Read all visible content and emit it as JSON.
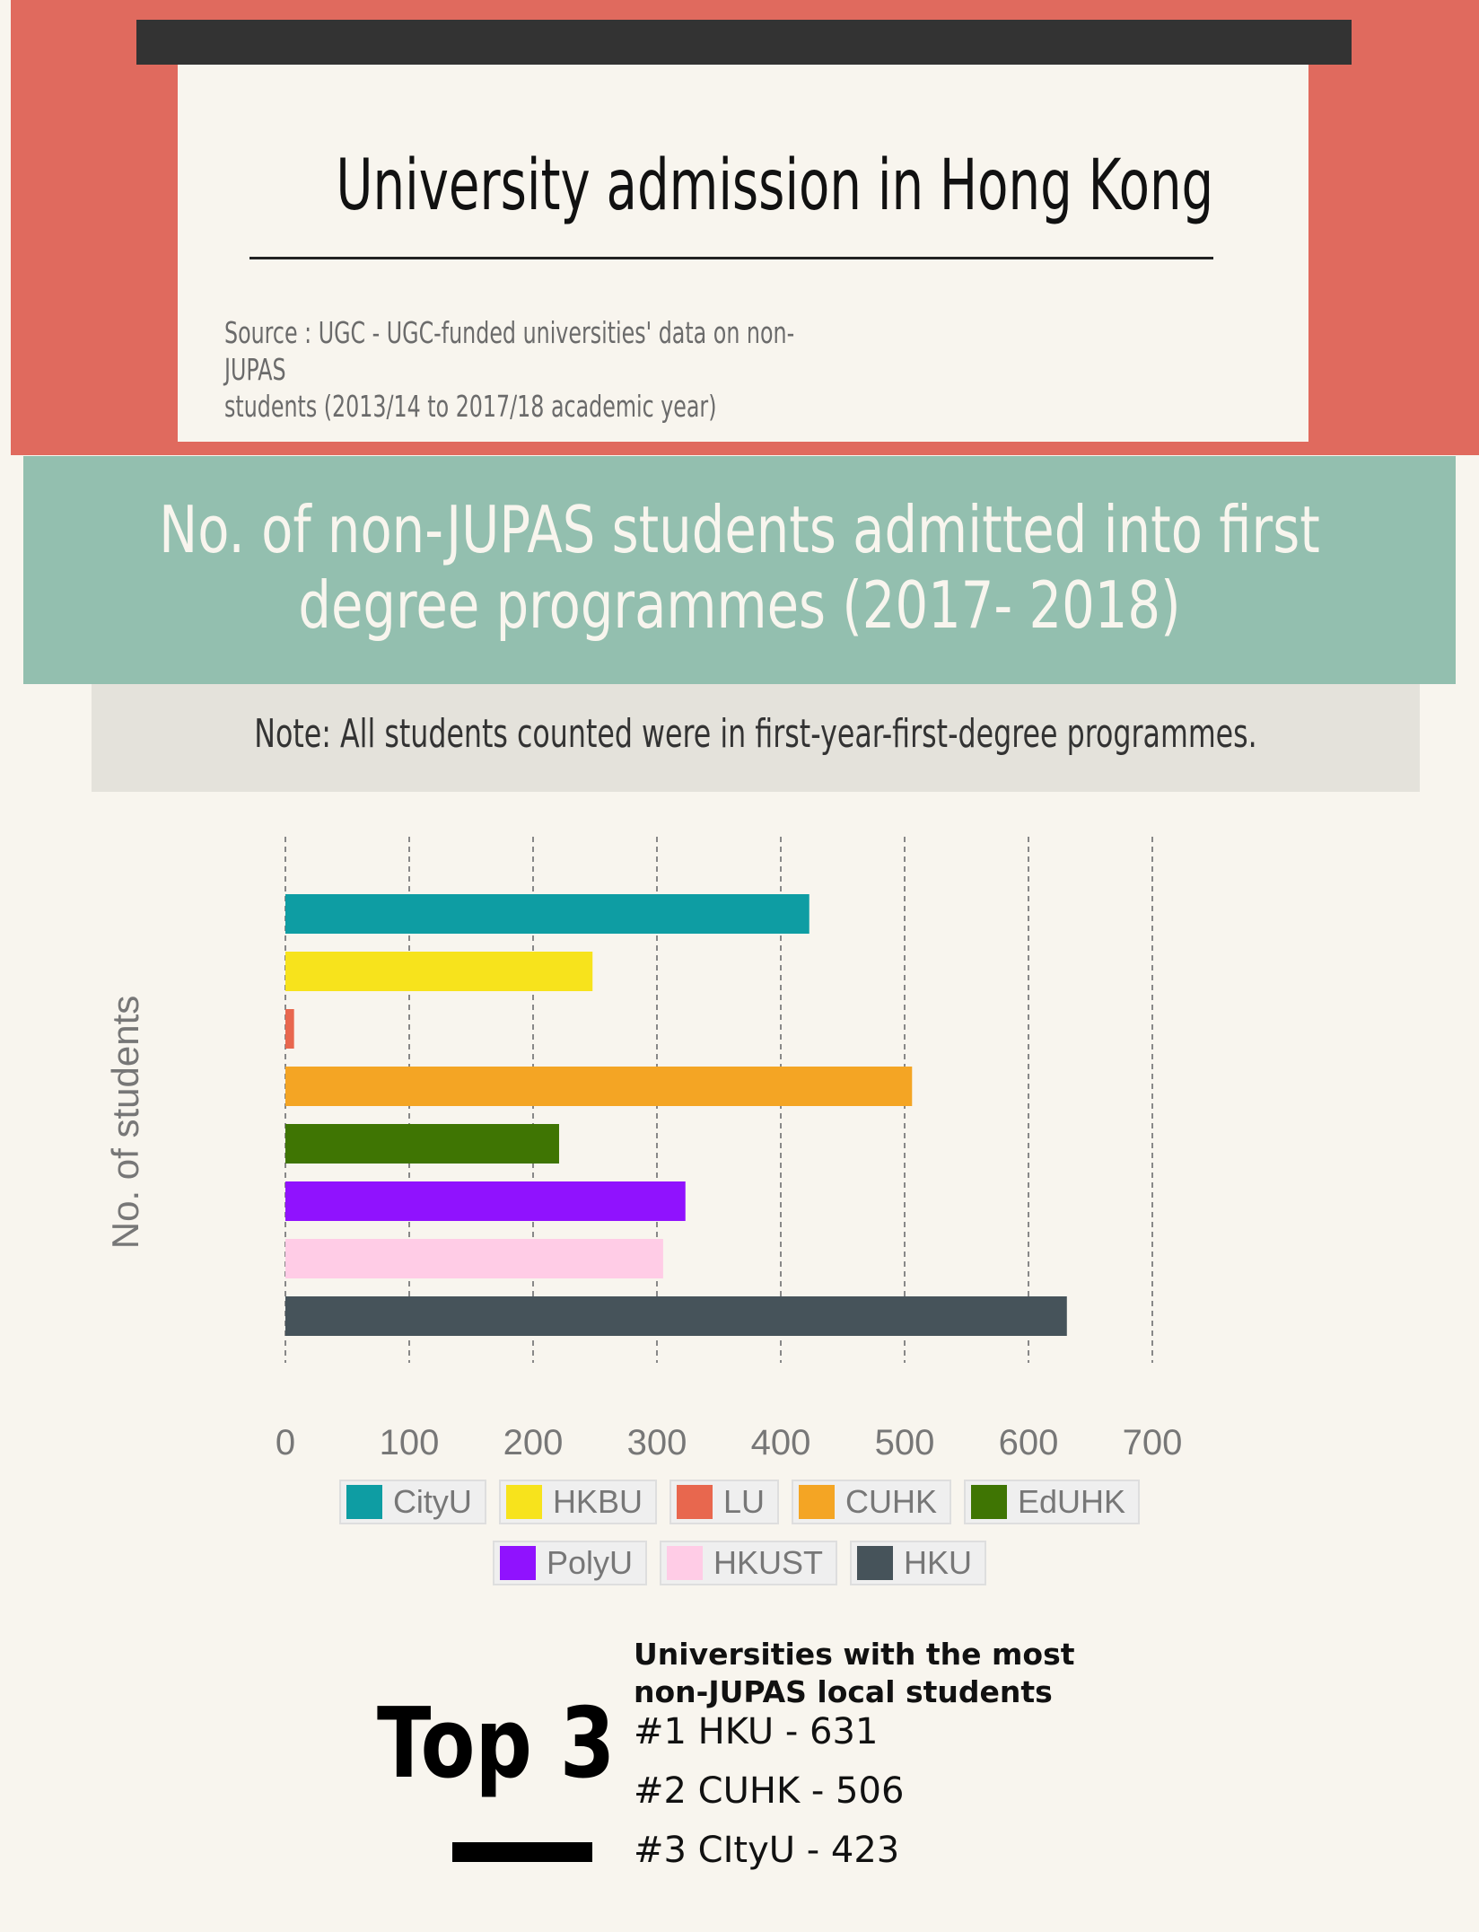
{
  "header": {
    "title": "University admission in Hong Kong",
    "source_line1": "Source : UGC - UGC-funded universities' data on non-JUPAS",
    "source_line2": "students (2013/14 to 2017/18 academic year)"
  },
  "subtitle": {
    "line1": "No. of non-JUPAS students admitted into first",
    "line2": "degree programmes (2017- 2018)"
  },
  "note": "Note: All students counted were in first-year-first-degree programmes.",
  "chart_data": {
    "type": "bar",
    "orientation": "horizontal",
    "ylabel": "No. of students",
    "xlim": [
      0,
      700
    ],
    "xticks": [
      "0",
      "100",
      "200",
      "300",
      "400",
      "500",
      "600",
      "700"
    ],
    "grid": true,
    "legend_placement": "bottom",
    "series": [
      {
        "name": "CityU",
        "value": 423,
        "color": "#0e9da3"
      },
      {
        "name": "HKBU",
        "value": 248,
        "color": "#f7e31c"
      },
      {
        "name": "LU",
        "value": 7,
        "color": "#e8674e"
      },
      {
        "name": "CUHK",
        "value": 506,
        "color": "#f4a524"
      },
      {
        "name": "EdUHK",
        "value": 221,
        "color": "#3f7503"
      },
      {
        "name": "PolyU",
        "value": 323,
        "color": "#9012fe"
      },
      {
        "name": "HKUST",
        "value": 305,
        "color": "#ffcce6"
      },
      {
        "name": "HKU",
        "value": 631,
        "color": "#46535a"
      }
    ]
  },
  "top3": {
    "big_label": "Top 3",
    "heading_line1": "Universities with the most",
    "heading_line2": "non-JUPAS local students",
    "items": [
      "#1  HKU - 631",
      "#2  CUHK - 506",
      "#3  CItyU - 423"
    ]
  }
}
